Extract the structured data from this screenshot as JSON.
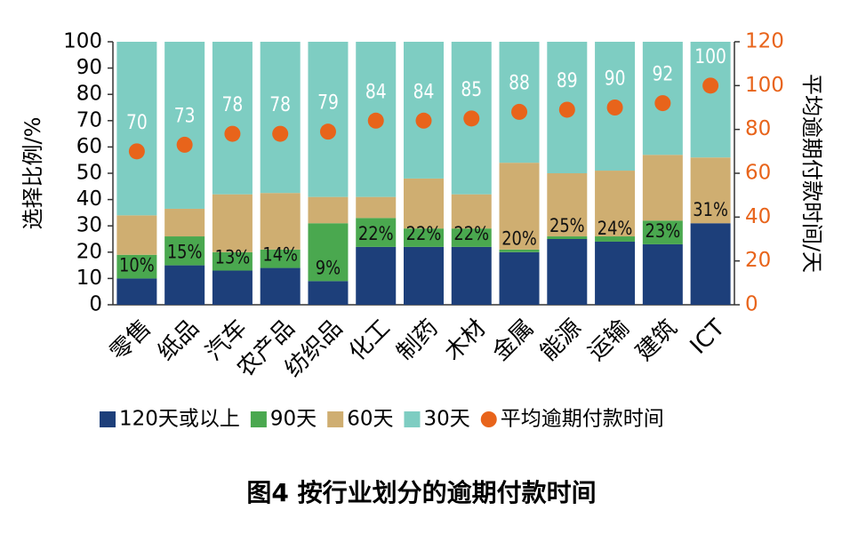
{
  "chart_data": {
    "type": "bar",
    "stacked": true,
    "title": "图4  按行业划分的逾期付款时间",
    "y_label": "选择比例/%",
    "y2_label": "平均逾期付款时间/天",
    "categories": [
      "零售",
      "纸品",
      "汽车",
      "农产品",
      "纺织品",
      "化工",
      "制药",
      "木材",
      "金属",
      "能源",
      "运输",
      "建筑",
      "ICT"
    ],
    "series": [
      {
        "name": "120天或以上",
        "color": "#1d3f7a",
        "values": [
          10,
          15,
          13,
          14,
          9,
          22,
          22,
          22,
          20,
          25,
          24,
          23,
          31
        ],
        "value_labels": [
          "10%",
          "15%",
          "13%",
          "14%",
          "9%",
          "22%",
          "22%",
          "22%",
          "20%",
          "25%",
          "24%",
          "23%",
          "31%"
        ]
      },
      {
        "name": "90天",
        "color": "#4aa84f",
        "values": [
          9,
          11,
          7,
          7,
          22,
          11,
          7,
          7,
          1,
          1,
          2,
          9,
          0
        ]
      },
      {
        "name": "60天",
        "color": "#cfae71",
        "values": [
          15,
          10.5,
          22,
          21.5,
          10,
          8,
          19,
          13,
          33,
          24,
          25,
          25,
          25
        ]
      },
      {
        "name": "30天",
        "color": "#7ecdc2",
        "values": [
          66,
          63.5,
          58,
          57.5,
          59,
          59,
          52,
          58,
          46,
          50,
          49,
          43,
          44
        ]
      },
      {
        "name": "平均逾期付款时间",
        "color": "#e8641b",
        "type": "scatter",
        "axis": "y2",
        "values": [
          70,
          73,
          78,
          78,
          79,
          84,
          84,
          85,
          88,
          89,
          90,
          92,
          100
        ]
      }
    ],
    "ylim": [
      0,
      100
    ],
    "yticks": [
      0,
      10,
      20,
      30,
      40,
      50,
      60,
      70,
      80,
      90,
      100
    ],
    "y2lim": [
      0,
      120
    ],
    "y2ticks": [
      0,
      20,
      40,
      60,
      80,
      100,
      120
    ],
    "y2_color": "#e8641b"
  }
}
